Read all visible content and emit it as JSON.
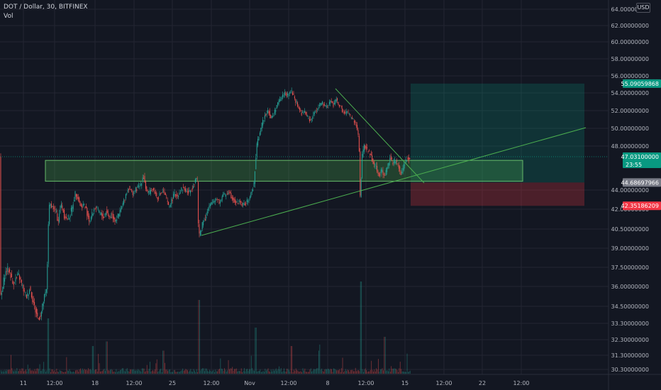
{
  "header": {
    "symbol_line": "DOT / Dollar, 30, BITFINEX",
    "indicator": "Vol",
    "currency": "USD"
  },
  "chart_data": {
    "type": "candlestick",
    "symbol": "DOT / Dollar",
    "timeframe": "30",
    "exchange": "BITFINEX",
    "y_ticks": [
      "64.00000000",
      "62.00000000",
      "60.00000000",
      "58.00000000",
      "56.00000000",
      "54.00000000",
      "52.00000000",
      "50.00000000",
      "48.00000000",
      "44.00000000",
      "42.00000000",
      "40.50000000",
      "39.00000000",
      "37.50000000",
      "36.00000000",
      "34.50000000",
      "33.30000000",
      "32.30000000",
      "31.30000000",
      "30.30000000"
    ],
    "x_ticks": [
      "11",
      "12:00",
      "18",
      "12:00",
      "25",
      "12:00",
      "Nov",
      "12:00",
      "8",
      "12:00",
      "15",
      "12:00",
      "22",
      "12:00"
    ],
    "price_tags": [
      {
        "value": "55.09059868",
        "color": "#089981"
      },
      {
        "value": "47.03100000",
        "sub": "23:55",
        "color": "#089981"
      },
      {
        "value": "44.68697966",
        "color": "#787b86"
      },
      {
        "value": "42.35186209",
        "color": "#f23645"
      }
    ],
    "price_path": [
      [
        0,
        35.0
      ],
      [
        3,
        35.6
      ],
      [
        6,
        36.8
      ],
      [
        10,
        37.4
      ],
      [
        14,
        37.1
      ],
      [
        18,
        36.2
      ],
      [
        22,
        36.6
      ],
      [
        26,
        36.9
      ],
      [
        30,
        36.3
      ],
      [
        34,
        35.6
      ],
      [
        38,
        35.2
      ],
      [
        42,
        35.9
      ],
      [
        46,
        35.0
      ],
      [
        50,
        34.2
      ],
      [
        54,
        33.6
      ],
      [
        58,
        34.0
      ],
      [
        62,
        35.1
      ],
      [
        66,
        35.8
      ],
      [
        68,
        40.8
      ],
      [
        70,
        42.6
      ],
      [
        74,
        42.2
      ],
      [
        78,
        41.9
      ],
      [
        82,
        41.1
      ],
      [
        86,
        42.6
      ],
      [
        90,
        41.6
      ],
      [
        94,
        41.2
      ],
      [
        98,
        41.5
      ],
      [
        102,
        42.2
      ],
      [
        106,
        43.7
      ],
      [
        110,
        43.2
      ],
      [
        114,
        42.2
      ],
      [
        118,
        42.5
      ],
      [
        122,
        41.9
      ],
      [
        126,
        41.1
      ],
      [
        130,
        41.6
      ],
      [
        134,
        42.2
      ],
      [
        138,
        41.9
      ],
      [
        142,
        41.6
      ],
      [
        146,
        41.4
      ],
      [
        150,
        41.9
      ],
      [
        154,
        41.4
      ],
      [
        158,
        41.6
      ],
      [
        162,
        41.2
      ],
      [
        166,
        41.4
      ],
      [
        170,
        41.9
      ],
      [
        174,
        42.7
      ],
      [
        178,
        43.7
      ],
      [
        182,
        44.3
      ],
      [
        186,
        43.6
      ],
      [
        190,
        43.9
      ],
      [
        194,
        44.2
      ],
      [
        198,
        44.4
      ],
      [
        202,
        45.4
      ],
      [
        206,
        44.0
      ],
      [
        210,
        43.6
      ],
      [
        214,
        44.2
      ],
      [
        218,
        43.8
      ],
      [
        222,
        43.2
      ],
      [
        226,
        43.6
      ],
      [
        230,
        43.9
      ],
      [
        234,
        43.2
      ],
      [
        238,
        42.2
      ],
      [
        242,
        42.9
      ],
      [
        246,
        43.6
      ],
      [
        250,
        43.4
      ],
      [
        254,
        43.9
      ],
      [
        258,
        44.2
      ],
      [
        262,
        43.9
      ],
      [
        266,
        43.7
      ],
      [
        270,
        44.1
      ],
      [
        274,
        44.7
      ],
      [
        278,
        45.3
      ],
      [
        280,
        39.9
      ],
      [
        282,
        40.2
      ],
      [
        286,
        41.1
      ],
      [
        290,
        41.4
      ],
      [
        294,
        42.1
      ],
      [
        298,
        42.6
      ],
      [
        302,
        42.9
      ],
      [
        306,
        43.2
      ],
      [
        310,
        42.6
      ],
      [
        314,
        43.6
      ],
      [
        318,
        43.4
      ],
      [
        322,
        43.9
      ],
      [
        326,
        43.4
      ],
      [
        330,
        42.9
      ],
      [
        334,
        42.6
      ],
      [
        338,
        42.9
      ],
      [
        342,
        42.4
      ],
      [
        346,
        42.6
      ],
      [
        350,
        42.9
      ],
      [
        354,
        43.6
      ],
      [
        358,
        44.6
      ],
      [
        362,
        48.0
      ],
      [
        366,
        49.6
      ],
      [
        370,
        50.6
      ],
      [
        374,
        51.6
      ],
      [
        378,
        52.1
      ],
      [
        382,
        51.1
      ],
      [
        386,
        51.6
      ],
      [
        390,
        52.6
      ],
      [
        394,
        53.1
      ],
      [
        398,
        53.6
      ],
      [
        402,
        54.1
      ],
      [
        406,
        53.6
      ],
      [
        410,
        54.3
      ],
      [
        414,
        53.6
      ],
      [
        418,
        52.9
      ],
      [
        422,
        52.1
      ],
      [
        426,
        51.6
      ],
      [
        430,
        51.9
      ],
      [
        434,
        51.1
      ],
      [
        438,
        50.9
      ],
      [
        442,
        51.6
      ],
      [
        446,
        52.1
      ],
      [
        450,
        52.6
      ],
      [
        454,
        52.9
      ],
      [
        458,
        52.3
      ],
      [
        462,
        52.6
      ],
      [
        466,
        53.1
      ],
      [
        470,
        52.6
      ],
      [
        474,
        53.3
      ],
      [
        478,
        52.6
      ],
      [
        482,
        52.1
      ],
      [
        486,
        51.6
      ],
      [
        490,
        51.9
      ],
      [
        494,
        51.3
      ],
      [
        498,
        50.9
      ],
      [
        502,
        50.4
      ],
      [
        506,
        48.9
      ],
      [
        508,
        42.6
      ],
      [
        510,
        46.9
      ],
      [
        514,
        48.1
      ],
      [
        518,
        47.6
      ],
      [
        522,
        47.3
      ],
      [
        526,
        46.6
      ],
      [
        530,
        46.1
      ],
      [
        534,
        45.4
      ],
      [
        538,
        45.8
      ],
      [
        542,
        45.2
      ],
      [
        546,
        46.1
      ],
      [
        550,
        47.1
      ],
      [
        554,
        46.4
      ],
      [
        558,
        46.6
      ],
      [
        562,
        46.1
      ],
      [
        566,
        45.4
      ],
      [
        570,
        46.4
      ],
      [
        574,
        46.9
      ],
      [
        578,
        47.03
      ]
    ],
    "volume_spikes": [
      [
        68,
        0.6
      ],
      [
        280,
        0.8
      ],
      [
        360,
        0.5
      ],
      [
        508,
        1.0
      ],
      [
        542,
        0.4
      ],
      [
        130,
        0.3
      ],
      [
        150,
        0.35
      ],
      [
        230,
        0.25
      ],
      [
        410,
        0.3
      ],
      [
        450,
        0.25
      ]
    ],
    "drawings": {
      "support_zone": {
        "top": 46.7,
        "bottom": 44.8
      },
      "long_position": {
        "entry": 44.68697966,
        "target": 55.09059868,
        "stop": 42.35186209
      },
      "trend_lines": [
        "ascending support",
        "descending resistance"
      ]
    },
    "colors": {
      "up": "#26a69a",
      "down": "#ef5350",
      "zone": "#4caf50",
      "target": "#089981",
      "stop": "#f23645",
      "grid": "#232632"
    }
  }
}
